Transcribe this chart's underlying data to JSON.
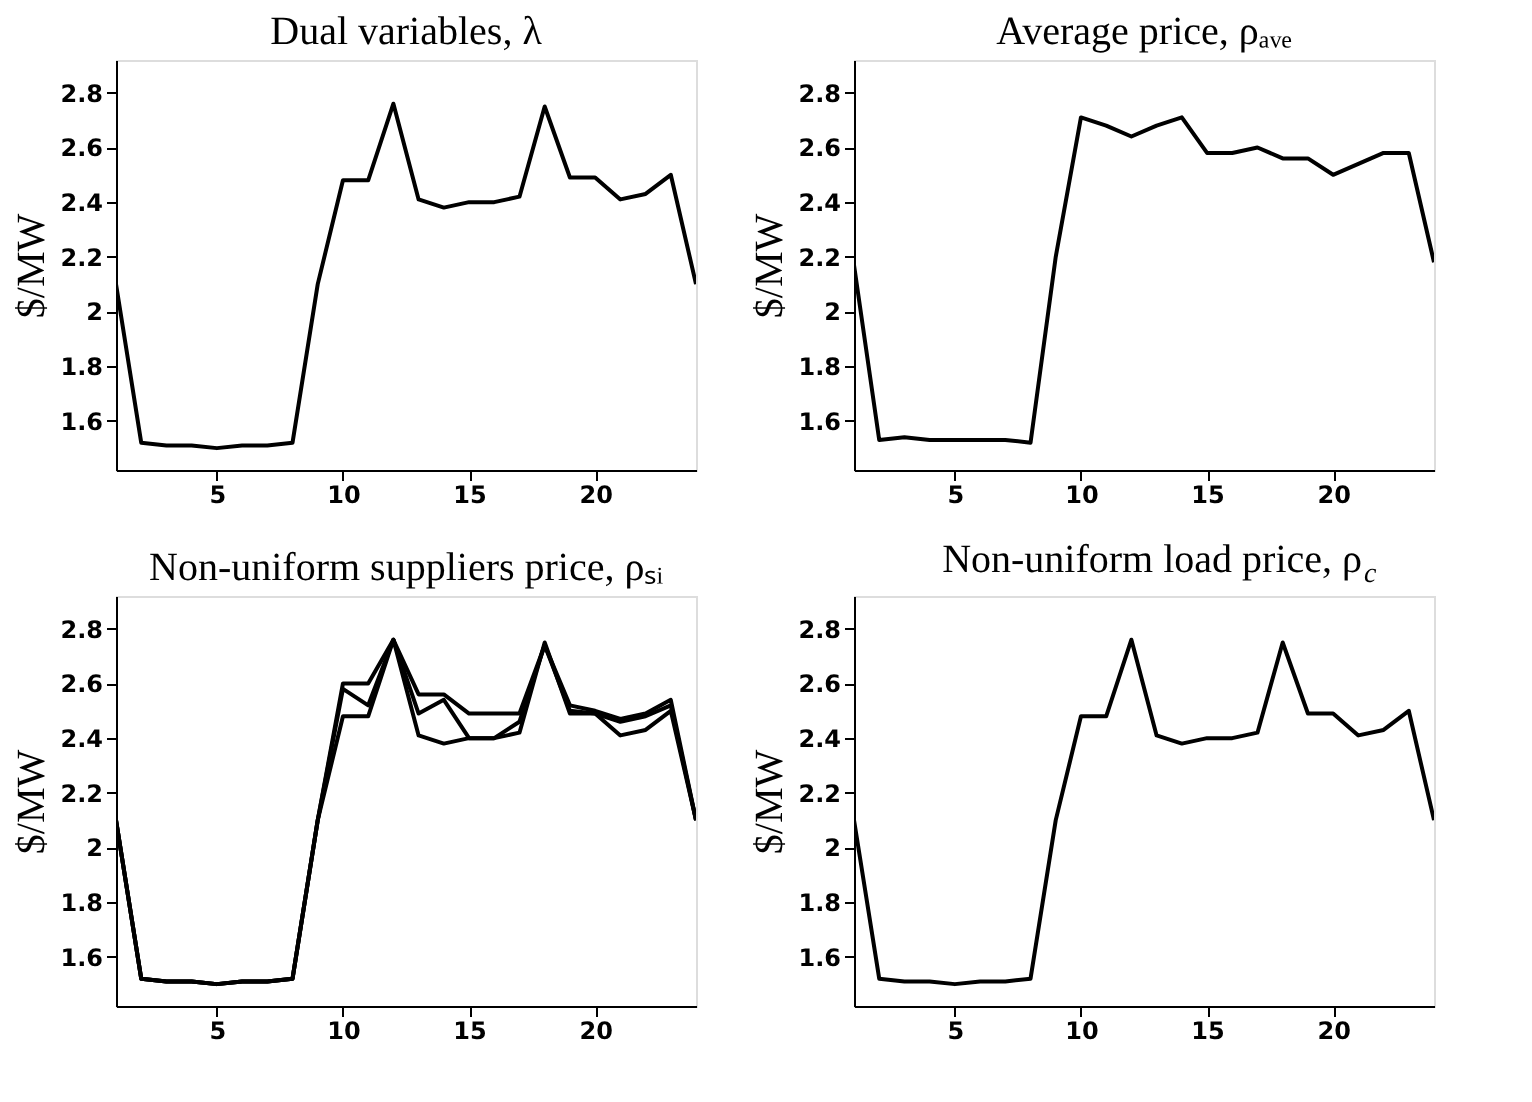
{
  "chart_data": [
    {
      "type": "line",
      "title": "Dual variables, λ",
      "ylabel": "$/MW",
      "x": [
        1,
        2,
        3,
        4,
        5,
        6,
        7,
        8,
        9,
        10,
        11,
        12,
        13,
        14,
        15,
        16,
        17,
        18,
        19,
        20,
        21,
        22,
        23,
        24
      ],
      "xlim": [
        1,
        24
      ],
      "xticks": [
        5,
        10,
        15,
        20
      ],
      "ylim": [
        1.42,
        2.92
      ],
      "yticks": [
        1.6,
        1.8,
        2,
        2.2,
        2.4,
        2.6,
        2.8
      ],
      "series": [
        {
          "color": "#000000",
          "values": [
            2.1,
            1.52,
            1.51,
            1.51,
            1.5,
            1.51,
            1.51,
            1.52,
            2.1,
            2.48,
            2.48,
            2.76,
            2.41,
            2.38,
            2.4,
            2.4,
            2.42,
            2.75,
            2.49,
            2.49,
            2.41,
            2.43,
            2.5,
            2.1
          ]
        }
      ]
    },
    {
      "type": "line",
      "title": "Average price, ρₐᵥₑ",
      "ylabel": "$/MW",
      "x": [
        1,
        2,
        3,
        4,
        5,
        6,
        7,
        8,
        9,
        10,
        11,
        12,
        13,
        14,
        15,
        16,
        17,
        18,
        19,
        20,
        21,
        22,
        23,
        24
      ],
      "xlim": [
        1,
        24
      ],
      "xticks": [
        5,
        10,
        15,
        20
      ],
      "ylim": [
        1.42,
        2.92
      ],
      "yticks": [
        1.6,
        1.8,
        2,
        2.2,
        2.4,
        2.6,
        2.8
      ],
      "series": [
        {
          "color": "#000000",
          "values": [
            2.17,
            1.53,
            1.54,
            1.53,
            1.53,
            1.53,
            1.53,
            1.52,
            2.2,
            2.71,
            2.68,
            2.64,
            2.68,
            2.71,
            2.58,
            2.58,
            2.6,
            2.56,
            2.56,
            2.5,
            2.54,
            2.58,
            2.58,
            2.18
          ]
        }
      ]
    },
    {
      "type": "line",
      "title": "Non-uniform suppliers price, ρₛᵢ",
      "ylabel": "$/MW",
      "x": [
        1,
        2,
        3,
        4,
        5,
        6,
        7,
        8,
        9,
        10,
        11,
        12,
        13,
        14,
        15,
        16,
        17,
        18,
        19,
        20,
        21,
        22,
        23,
        24
      ],
      "xlim": [
        1,
        24
      ],
      "xticks": [
        5,
        10,
        15,
        20
      ],
      "ylim": [
        1.42,
        2.92
      ],
      "yticks": [
        1.6,
        1.8,
        2,
        2.2,
        2.4,
        2.6,
        2.8
      ],
      "series": [
        {
          "color": "#000000",
          "values": [
            2.1,
            1.52,
            1.51,
            1.51,
            1.5,
            1.51,
            1.51,
            1.52,
            2.1,
            2.48,
            2.48,
            2.76,
            2.41,
            2.38,
            2.4,
            2.4,
            2.42,
            2.75,
            2.49,
            2.49,
            2.41,
            2.43,
            2.5,
            2.1
          ]
        },
        {
          "color": "#000000",
          "values": [
            2.1,
            1.52,
            1.51,
            1.51,
            1.5,
            1.51,
            1.51,
            1.52,
            2.1,
            2.6,
            2.6,
            2.76,
            2.56,
            2.56,
            2.49,
            2.49,
            2.49,
            2.74,
            2.52,
            2.5,
            2.47,
            2.49,
            2.54,
            2.1
          ]
        },
        {
          "color": "#000000",
          "values": [
            2.1,
            1.52,
            1.51,
            1.51,
            1.5,
            1.51,
            1.51,
            1.52,
            2.1,
            2.58,
            2.52,
            2.76,
            2.49,
            2.54,
            2.4,
            2.4,
            2.46,
            2.74,
            2.5,
            2.49,
            2.46,
            2.48,
            2.52,
            2.1
          ]
        }
      ]
    },
    {
      "type": "line",
      "title": "Non-uniform load price, ρ$_{c}$",
      "ylabel": "$/MW",
      "x": [
        1,
        2,
        3,
        4,
        5,
        6,
        7,
        8,
        9,
        10,
        11,
        12,
        13,
        14,
        15,
        16,
        17,
        18,
        19,
        20,
        21,
        22,
        23,
        24
      ],
      "xlim": [
        1,
        24
      ],
      "xticks": [
        5,
        10,
        15,
        20
      ],
      "ylim": [
        1.42,
        2.92
      ],
      "yticks": [
        1.6,
        1.8,
        2,
        2.2,
        2.4,
        2.6,
        2.8
      ],
      "series": [
        {
          "color": "#000000",
          "values": [
            2.1,
            1.52,
            1.51,
            1.51,
            1.5,
            1.51,
            1.51,
            1.52,
            2.1,
            2.48,
            2.48,
            2.76,
            2.41,
            2.38,
            2.4,
            2.4,
            2.42,
            2.75,
            2.49,
            2.49,
            2.41,
            2.43,
            2.5,
            2.1
          ]
        }
      ]
    }
  ]
}
